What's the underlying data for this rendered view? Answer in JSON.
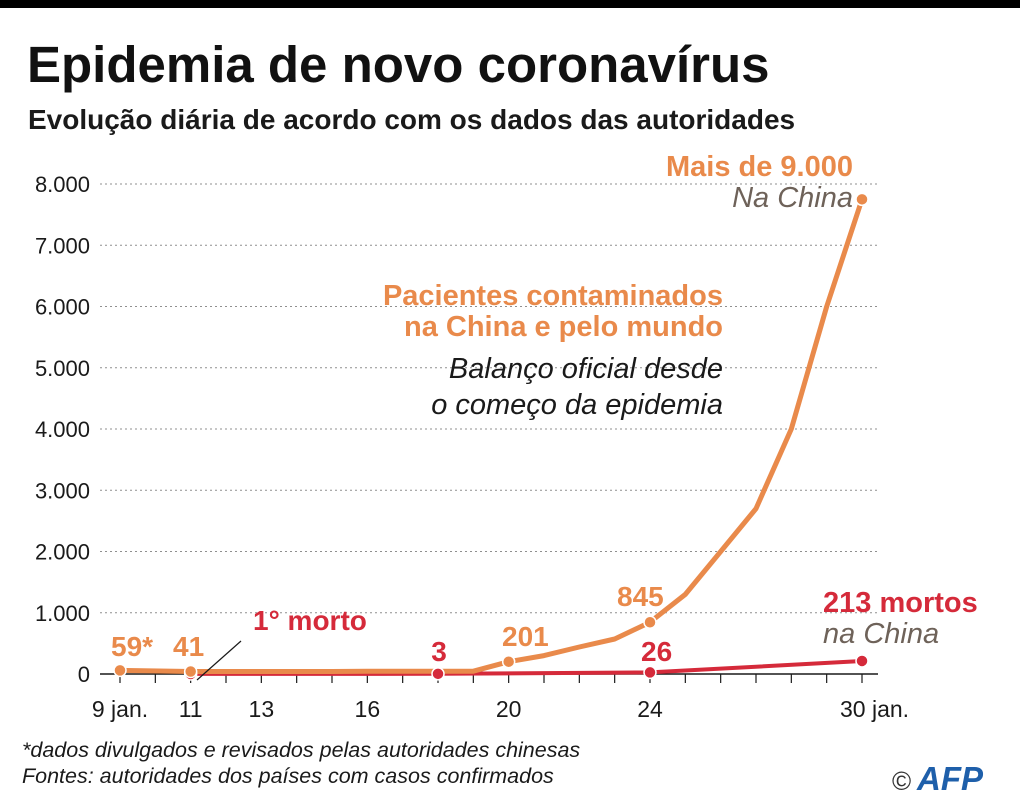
{
  "chart_data": {
    "type": "line",
    "title": "Epidemia de novo coronavírus",
    "subtitle": "Evolução diária de acordo com os dados das autoridades",
    "xlim": [
      9,
      30
    ],
    "ylim": [
      0,
      8000
    ],
    "grid": true,
    "x_ticks": [
      {
        "value": 9,
        "label": "9 jan."
      },
      {
        "value": 11,
        "label": "11"
      },
      {
        "value": 13,
        "label": "13"
      },
      {
        "value": 16,
        "label": "16"
      },
      {
        "value": 20,
        "label": "20"
      },
      {
        "value": 24,
        "label": "24"
      },
      {
        "value": 30,
        "label": "30 jan."
      }
    ],
    "y_ticks": [
      {
        "value": 0,
        "label": "0"
      },
      {
        "value": 1000,
        "label": "1.000"
      },
      {
        "value": 2000,
        "label": "2.000"
      },
      {
        "value": 3000,
        "label": "3.000"
      },
      {
        "value": 4000,
        "label": "4.000"
      },
      {
        "value": 5000,
        "label": "5.000"
      },
      {
        "value": 6000,
        "label": "6.000"
      },
      {
        "value": 7000,
        "label": "7.000"
      },
      {
        "value": 8000,
        "label": "8.000"
      }
    ],
    "series": [
      {
        "label_lines": [
          "Pacientes contaminados",
          "na China e pelo mundo"
        ],
        "color": "#E98A4B",
        "x": [
          9,
          11,
          12,
          13,
          14,
          15,
          16,
          17,
          18,
          19,
          20,
          21,
          22,
          23,
          24,
          25,
          26,
          27,
          28,
          29,
          30
        ],
        "values": [
          59,
          41,
          41,
          41,
          41,
          41,
          45,
          45,
          45,
          45,
          201,
          300,
          440,
          571,
          845,
          1300,
          2000,
          2700,
          4000,
          6000,
          7750
        ],
        "point_labels": [
          {
            "x": 9,
            "text": "59*"
          },
          {
            "x": 11,
            "text": "41"
          },
          {
            "x": 20,
            "text": "201"
          },
          {
            "x": 24,
            "text": "845"
          }
        ],
        "end_label_lines": [
          "Mais de 9.000",
          "Na China"
        ]
      },
      {
        "color": "#D52A3A",
        "x": [
          11,
          18,
          24,
          30
        ],
        "values": [
          1,
          3,
          26,
          213
        ],
        "point_labels": [
          {
            "x": 11,
            "text": "1° morto"
          },
          {
            "x": 18,
            "text": "3"
          },
          {
            "x": 24,
            "text": "26"
          }
        ],
        "end_label_lines": [
          "213 mortos",
          "na China"
        ]
      }
    ],
    "note_lines": [
      "Balanço oficial desde",
      "o começo da epidemia"
    ],
    "annotation_color": "#6E6259"
  },
  "footer": {
    "footnote": "*dados divulgados e revisados pelas autoridades chinesas",
    "sources": "Fontes: autoridades dos países com casos confirmados",
    "copyright_symbol": "©",
    "agency_logo": "AFP",
    "agency_color": "#1E5FAA"
  }
}
